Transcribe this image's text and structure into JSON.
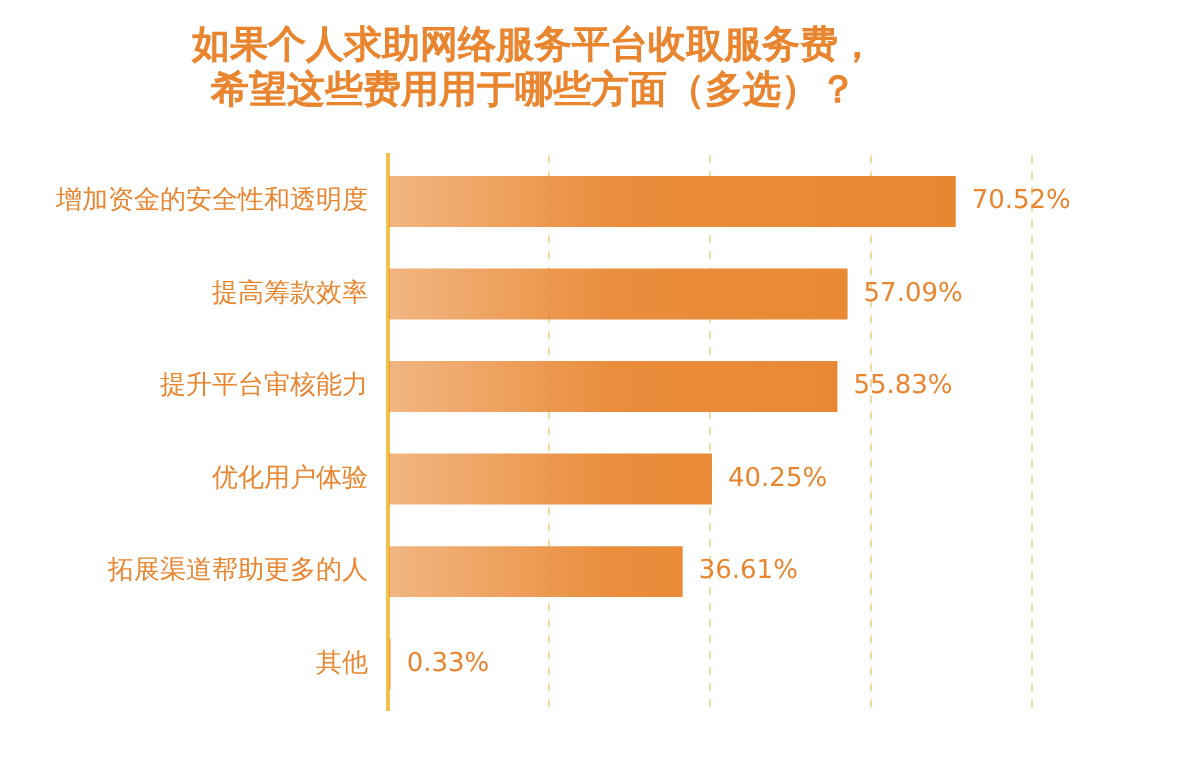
{
  "chart_data": {
    "type": "bar",
    "orientation": "horizontal",
    "title": "如果个人求助网络服务平台收取服务费，希望这些费用用于哪些方面（多选）？",
    "categories": [
      "增加资金的安全性和透明度",
      "提高筹款效率",
      "提升平台审核能力",
      "优化用户体验",
      "拓展渠道帮助更多的人",
      "其他"
    ],
    "values": [
      70.52,
      57.09,
      55.83,
      40.25,
      36.61,
      0.33
    ],
    "value_labels": [
      "70.52%",
      "57.09%",
      "55.83%",
      "40.25%",
      "36.61%",
      "0.33%"
    ],
    "color": "#e8852e",
    "xlim": [
      0,
      80
    ],
    "xticks": [
      {
        "value": 0,
        "label": null
      },
      {
        "value": 20,
        "label": null
      },
      {
        "value": 40,
        "label": null
      },
      {
        "value": 60,
        "label": null
      },
      {
        "value": 80,
        "label": null
      }
    ],
    "grid": "x",
    "tick_labels": "y",
    "legend": false
  }
}
